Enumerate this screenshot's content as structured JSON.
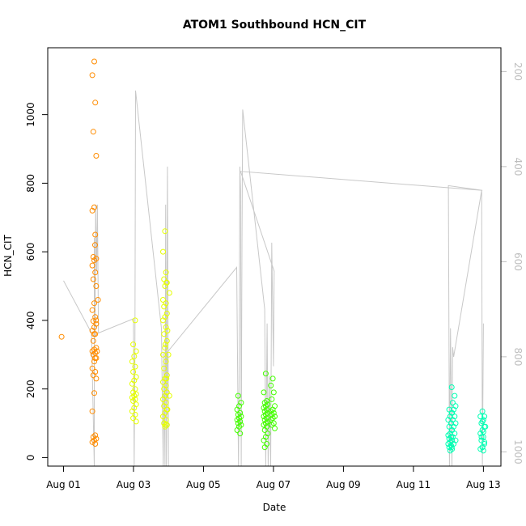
{
  "chart_data": {
    "type": "scatter",
    "title": "ATOM1 Southbound HCN_CIT",
    "xlabel": "Date",
    "ylabel": "HCN_CIT",
    "x_ticks": [
      {
        "value": 0,
        "label": "Aug 01"
      },
      {
        "value": 2,
        "label": "Aug 03"
      },
      {
        "value": 4,
        "label": "Aug 05"
      },
      {
        "value": 6,
        "label": "Aug 07"
      },
      {
        "value": 8,
        "label": "Aug 09"
      },
      {
        "value": 10,
        "label": "Aug 11"
      },
      {
        "value": 12,
        "label": "Aug 13"
      }
    ],
    "y_ticks": [
      0,
      200,
      400,
      600,
      800,
      1000
    ],
    "right_axis": {
      "ticks": [
        200,
        400,
        600,
        800,
        1000
      ],
      "range": [
        150,
        1030
      ],
      "reversed": true,
      "color": "#bebebe"
    },
    "xlim": [
      -0.45,
      12.5
    ],
    "ylim": [
      -25,
      1195
    ],
    "grid": false,
    "clusters": [
      {
        "x": 0.0,
        "color": "#ff8c00",
        "values": [
          352
        ]
      },
      {
        "x": 0.88,
        "color": "#ff8c00",
        "values": [
          40,
          45,
          50,
          55,
          60,
          65,
          135,
          188,
          230,
          240,
          250,
          260,
          280,
          290,
          300,
          305,
          310,
          315,
          320,
          340,
          360,
          370,
          380,
          390,
          398,
          410,
          430,
          450,
          500,
          520,
          540,
          560,
          575,
          580,
          585,
          650,
          720,
          730,
          880,
          950,
          1035,
          1115,
          1155
        ]
      },
      {
        "x": 0.93,
        "color": "#ff8c00",
        "values": [
          290,
          310,
          360,
          400,
          460,
          620
        ]
      },
      {
        "x": 2.02,
        "color": "#e6ff00",
        "values": [
          105,
          115,
          125,
          135,
          145,
          155,
          165,
          170,
          175,
          180,
          185,
          190,
          200,
          215,
          225,
          235,
          250,
          265,
          280,
          295,
          310,
          330,
          400
        ]
      },
      {
        "x": 2.9,
        "color": "#e6ff00",
        "values": [
          90,
          95,
          100,
          110,
          120,
          130,
          140,
          150,
          160,
          170,
          180,
          190,
          200,
          210,
          220,
          230,
          240,
          260,
          280,
          300,
          320,
          340,
          360,
          380,
          400,
          410,
          420,
          440,
          450,
          460,
          500,
          510,
          520,
          540,
          600,
          660
        ]
      },
      {
        "x": 2.97,
        "color": "#e6ff00",
        "values": [
          95,
          140,
          180,
          230,
          300,
          330,
          370,
          480,
          510
        ]
      },
      {
        "x": 5.02,
        "color": "#44ff00",
        "values": [
          70,
          80,
          90,
          95,
          100,
          105,
          110,
          115,
          120,
          125,
          130,
          140,
          150,
          160,
          180
        ]
      },
      {
        "x": 5.78,
        "color": "#44ff00",
        "values": [
          30,
          40,
          50,
          60,
          70,
          80,
          90,
          95,
          100,
          105,
          110,
          115,
          120,
          125,
          130,
          135,
          140,
          145,
          150,
          155,
          160,
          165,
          190,
          245
        ]
      },
      {
        "x": 5.98,
        "color": "#44ff00",
        "values": [
          85,
          95,
          100,
          110,
          115,
          120,
          125,
          130,
          135,
          140,
          150,
          170,
          190,
          210,
          230
        ]
      },
      {
        "x": 11.05,
        "color": "#00ffb3",
        "values": [
          20,
          25,
          30,
          35,
          40,
          45,
          50,
          55,
          60,
          65,
          70,
          80,
          90,
          100,
          110,
          120,
          130,
          140
        ]
      },
      {
        "x": 11.15,
        "color": "#00ffb3",
        "values": [
          30,
          40,
          50,
          60,
          70,
          80,
          90,
          100,
          110,
          120,
          130,
          140,
          150,
          160,
          180,
          205
        ]
      },
      {
        "x": 11.97,
        "color": "#00ffb3",
        "values": [
          20,
          25,
          30,
          40,
          50,
          60,
          70,
          80,
          90,
          100,
          110,
          120,
          135
        ]
      },
      {
        "x": 12.0,
        "color": "#00ffb3",
        "values": [
          30,
          45,
          60,
          75,
          90,
          105,
          120
        ]
      }
    ],
    "track_color": "#c8c8c8",
    "track": [
      [
        0.0,
        640
      ],
      [
        0.8,
        750
      ],
      [
        0.88,
        1030
      ],
      [
        0.88,
        550
      ],
      [
        0.9,
        760
      ],
      [
        0.92,
        480
      ],
      [
        0.95,
        620
      ],
      [
        0.97,
        480
      ],
      [
        1.0,
        750
      ],
      [
        2.0,
        720
      ],
      [
        2.02,
        1030
      ],
      [
        2.04,
        800
      ],
      [
        2.06,
        240
      ],
      [
        2.8,
        740
      ],
      [
        2.85,
        1030
      ],
      [
        2.87,
        790
      ],
      [
        2.9,
        1030
      ],
      [
        2.92,
        480
      ],
      [
        2.94,
        1030
      ],
      [
        2.96,
        560
      ],
      [
        2.97,
        400
      ],
      [
        3.0,
        1030
      ],
      [
        2.97,
        790
      ],
      [
        4.95,
        612
      ],
      [
        5.0,
        1030
      ],
      [
        5.02,
        850
      ],
      [
        5.04,
        400
      ],
      [
        5.06,
        450
      ],
      [
        5.08,
        1030
      ],
      [
        5.1,
        560
      ],
      [
        5.12,
        280
      ],
      [
        5.75,
        700
      ],
      [
        5.78,
        1030
      ],
      [
        5.82,
        730
      ],
      [
        5.85,
        1030
      ],
      [
        5.88,
        840
      ],
      [
        5.92,
        1030
      ],
      [
        5.95,
        560
      ],
      [
        6.0,
        820
      ],
      [
        6.02,
        620
      ],
      [
        5.06,
        410
      ],
      [
        11.97,
        450
      ],
      [
        11.0,
        440
      ],
      [
        11.03,
        1030
      ],
      [
        11.06,
        740
      ],
      [
        11.1,
        1030
      ],
      [
        11.12,
        780
      ],
      [
        11.15,
        800
      ],
      [
        11.95,
        450
      ],
      [
        11.97,
        1030
      ],
      [
        12.0,
        730
      ]
    ]
  }
}
